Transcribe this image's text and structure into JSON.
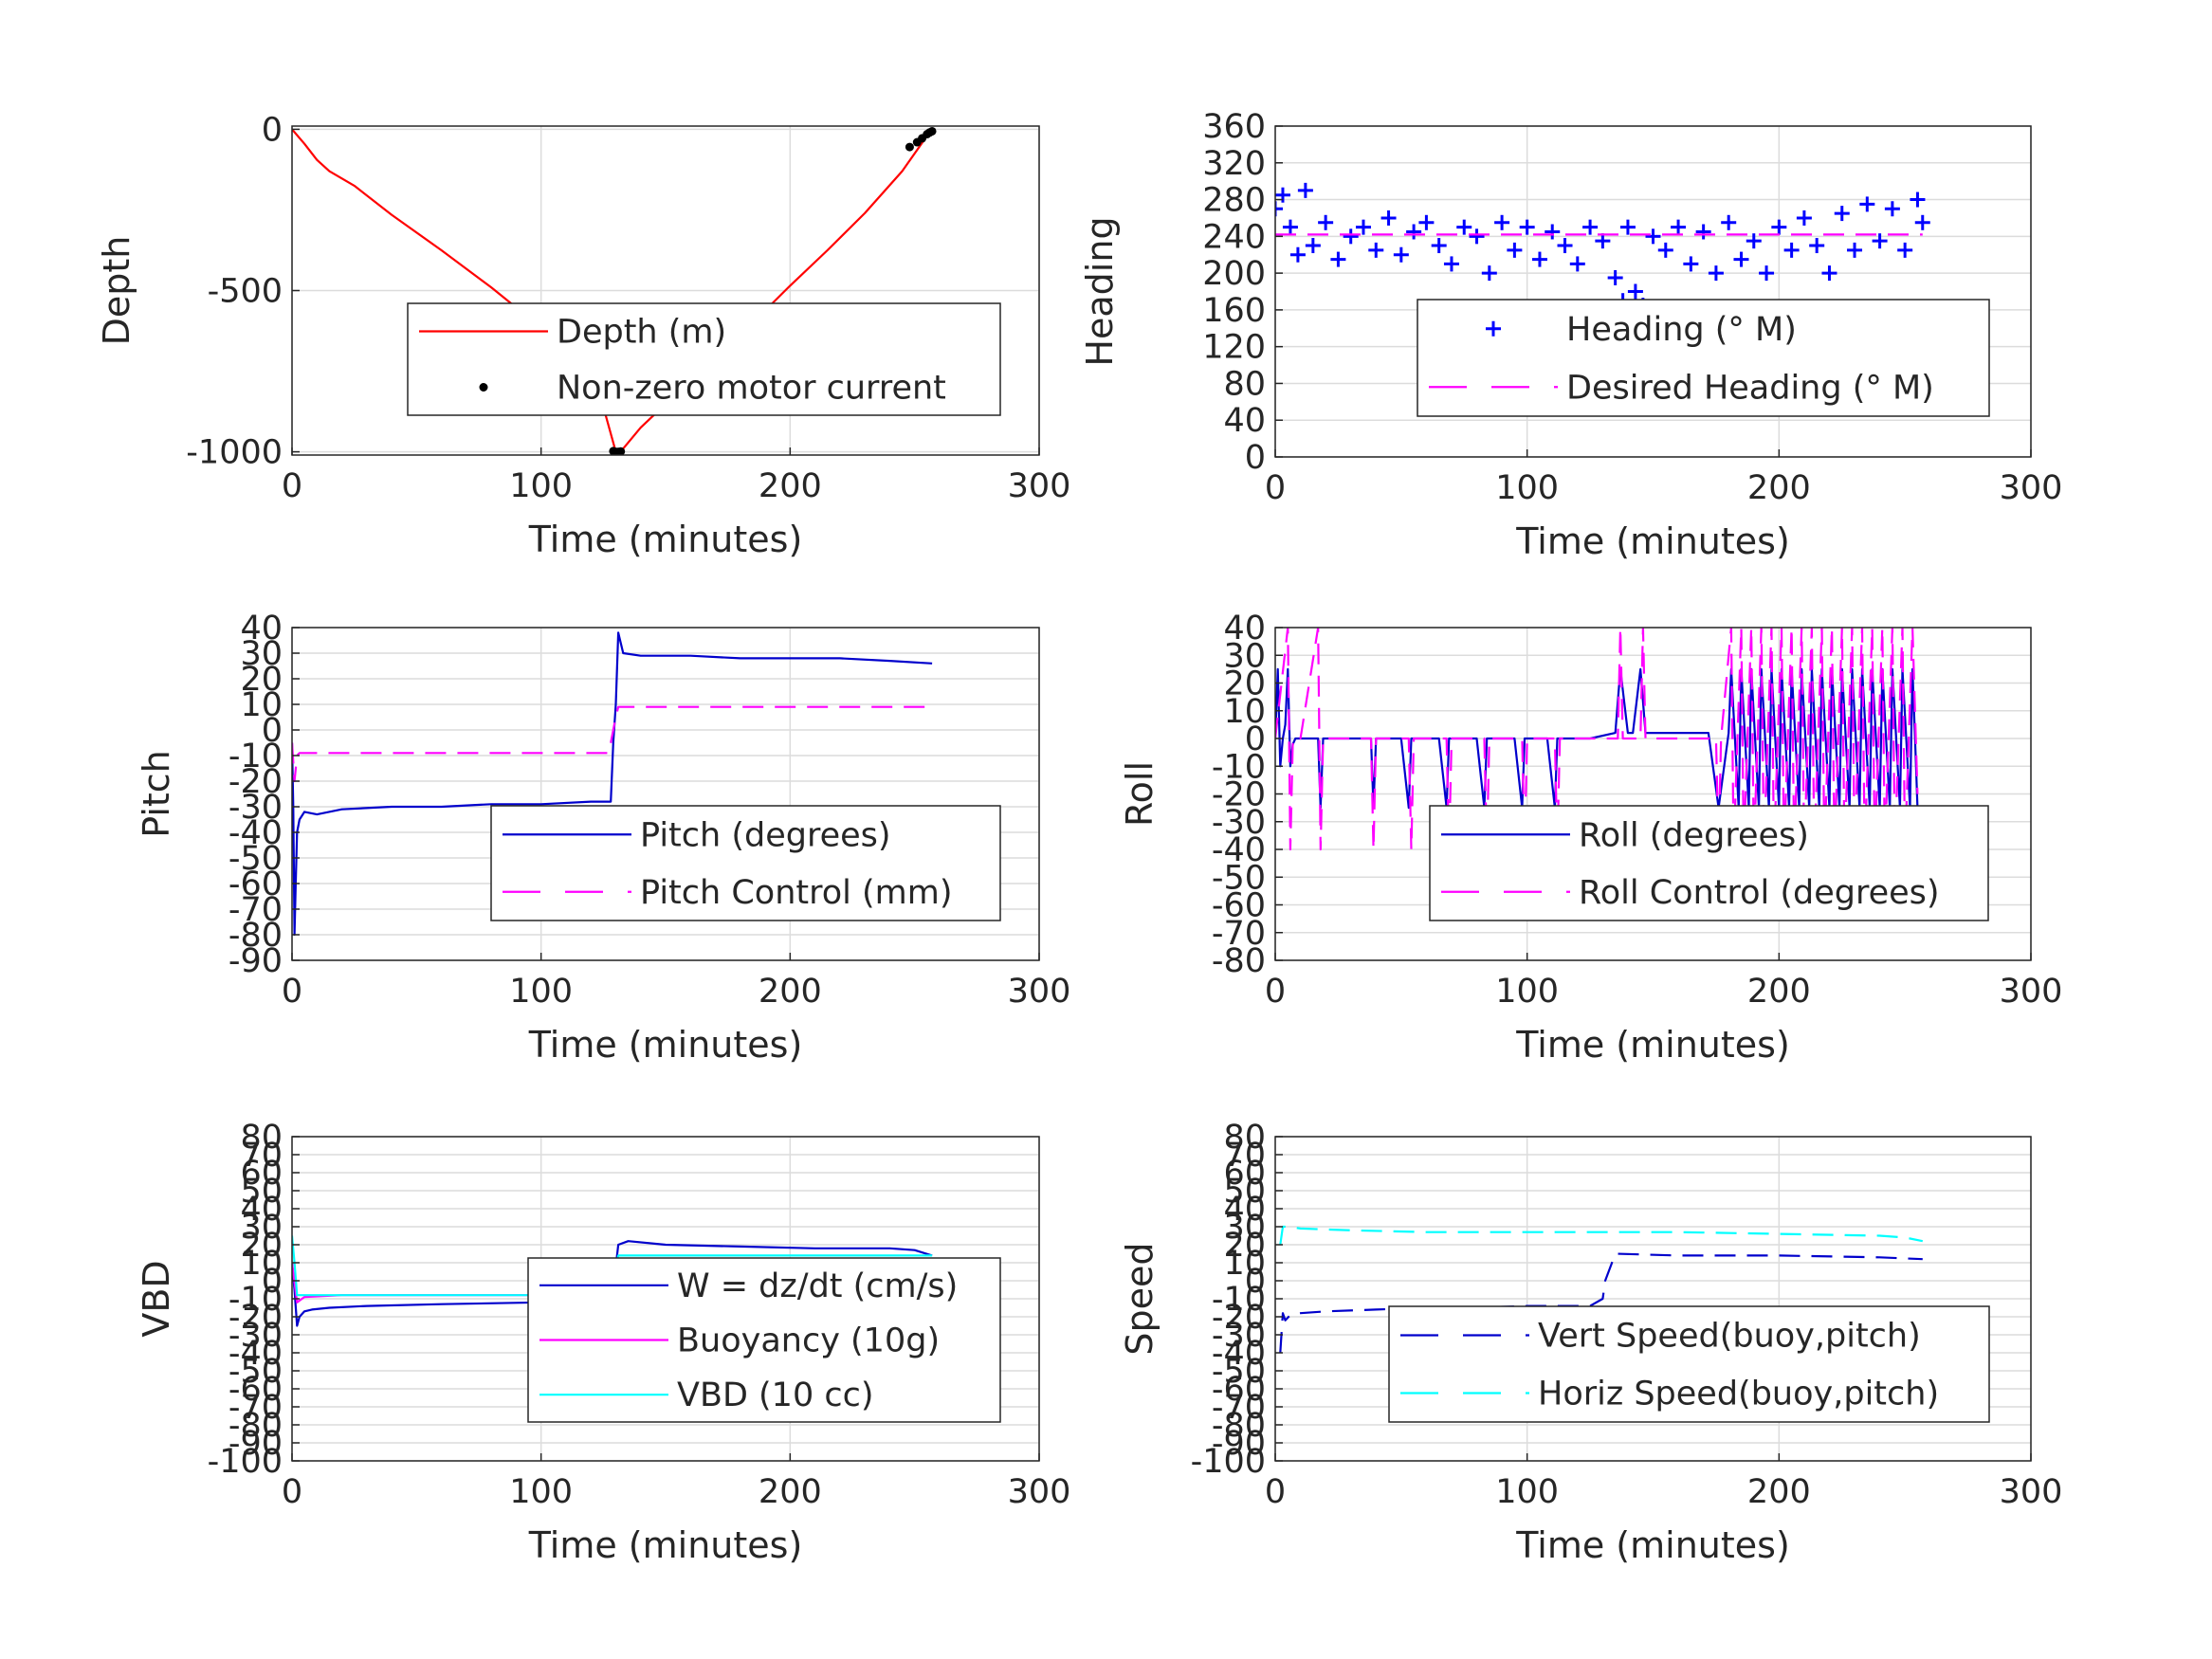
{
  "figure": {
    "background": "#ffffff",
    "grid_color": "#dcdcdc"
  },
  "chart_data": [
    {
      "id": "depth",
      "type": "line",
      "xlabel": "Time (minutes)",
      "ylabel": "Depth",
      "xlim": [
        0,
        300
      ],
      "ylim": [
        -1010,
        10
      ],
      "xticks": [
        0,
        100,
        200,
        300
      ],
      "yticks": [
        0,
        -500,
        -1000
      ],
      "grid": true,
      "legend_position": "center-right",
      "series": [
        {
          "name": "Depth (m)",
          "style": "line",
          "color": "#ff0000",
          "dash": "solid",
          "x": [
            0,
            5,
            10,
            15,
            25,
            40,
            60,
            80,
            100,
            115,
            125,
            130,
            133,
            140,
            155,
            170,
            185,
            200,
            215,
            230,
            245,
            255,
            257
          ],
          "y": [
            0,
            -45,
            -95,
            -130,
            -175,
            -265,
            -375,
            -490,
            -615,
            -730,
            -860,
            -1000,
            -990,
            -925,
            -815,
            -710,
            -600,
            -485,
            -375,
            -260,
            -130,
            -20,
            -5
          ]
        },
        {
          "name": "Non-zero motor current",
          "style": "dots",
          "color": "#000000",
          "x": [
            129,
            130,
            131,
            132,
            248,
            251,
            253,
            255,
            256,
            257
          ],
          "y": [
            -998,
            -1000,
            -1000,
            -999,
            -55,
            -40,
            -28,
            -15,
            -10,
            -6
          ]
        }
      ]
    },
    {
      "id": "heading",
      "type": "scatter",
      "xlabel": "Time (minutes)",
      "ylabel": "Heading",
      "xlim": [
        0,
        300
      ],
      "ylim": [
        0,
        360
      ],
      "xticks": [
        0,
        100,
        200,
        300
      ],
      "yticks": [
        0,
        40,
        80,
        120,
        160,
        200,
        240,
        280,
        320,
        360
      ],
      "grid": true,
      "legend_position": "center-right",
      "series": [
        {
          "name": "Heading (° M)",
          "style": "plus",
          "color": "#0000ff",
          "x": [
            0,
            3,
            6,
            9,
            12,
            15,
            20,
            25,
            30,
            35,
            40,
            45,
            50,
            55,
            60,
            65,
            70,
            75,
            80,
            85,
            90,
            95,
            100,
            105,
            110,
            115,
            120,
            125,
            130,
            135,
            138,
            140,
            143,
            146,
            150,
            155,
            160,
            165,
            170,
            175,
            178,
            180,
            185,
            190,
            195,
            200,
            205,
            210,
            215,
            220,
            225,
            230,
            235,
            240,
            245,
            250,
            255,
            257
          ],
          "y": [
            270,
            285,
            250,
            220,
            290,
            230,
            255,
            215,
            240,
            250,
            225,
            260,
            220,
            245,
            255,
            230,
            210,
            250,
            240,
            200,
            255,
            225,
            250,
            215,
            245,
            230,
            210,
            250,
            235,
            195,
            170,
            250,
            180,
            165,
            240,
            225,
            250,
            210,
            245,
            200,
            160,
            255,
            215,
            235,
            200,
            250,
            225,
            260,
            230,
            200,
            265,
            225,
            275,
            235,
            270,
            225,
            280,
            255
          ]
        },
        {
          "name": "Desired Heading (° M)",
          "style": "line",
          "color": "#ff00ff",
          "dash": "dashed",
          "x": [
            0,
            257
          ],
          "y": [
            242,
            242
          ]
        }
      ]
    },
    {
      "id": "pitch",
      "type": "line",
      "xlabel": "Time (minutes)",
      "ylabel": "Pitch",
      "xlim": [
        0,
        300
      ],
      "ylim": [
        -90,
        40
      ],
      "xticks": [
        0,
        100,
        200,
        300
      ],
      "yticks": [
        40,
        30,
        20,
        10,
        0,
        -10,
        -20,
        -30,
        -40,
        -50,
        -60,
        -70,
        -80,
        -90
      ],
      "grid": true,
      "legend_position": "lower-right",
      "series": [
        {
          "name": "Pitch (degrees)",
          "style": "line",
          "color": "#0000cc",
          "dash": "solid",
          "x": [
            0,
            0.5,
            1,
            1.5,
            2,
            3,
            5,
            10,
            20,
            40,
            60,
            80,
            100,
            120,
            128,
            129,
            130,
            131,
            133,
            140,
            160,
            180,
            200,
            220,
            240,
            257
          ],
          "y": [
            -5,
            -30,
            -80,
            -60,
            -40,
            -35,
            -32,
            -33,
            -31,
            -30,
            -30,
            -29,
            -29,
            -28,
            -28,
            -5,
            10,
            38,
            30,
            29,
            29,
            28,
            28,
            28,
            27,
            26
          ]
        },
        {
          "name": "Pitch Control (mm)",
          "style": "line",
          "color": "#ff00ff",
          "dash": "dashed",
          "x": [
            0,
            1,
            2,
            3,
            10,
            60,
            127,
            128,
            129,
            130,
            131,
            160,
            200,
            257
          ],
          "y": [
            -5,
            -20,
            -10,
            -9,
            -9,
            -9,
            -9,
            -5,
            0,
            5,
            9,
            9,
            9,
            9
          ]
        }
      ]
    },
    {
      "id": "roll",
      "type": "line",
      "xlabel": "Time (minutes)",
      "ylabel": "Roll",
      "xlim": [
        0,
        300
      ],
      "ylim": [
        -80,
        40
      ],
      "xticks": [
        0,
        100,
        200,
        300
      ],
      "yticks": [
        40,
        30,
        20,
        10,
        0,
        -10,
        -20,
        -30,
        -40,
        -50,
        -60,
        -70,
        -80
      ],
      "grid": true,
      "legend_position": "lower-right",
      "series": [
        {
          "name": "Roll (degrees)",
          "style": "line",
          "color": "#0000cc",
          "dash": "solid",
          "x": [
            0,
            1,
            2,
            3,
            4,
            5,
            6,
            7,
            8,
            12,
            17,
            18,
            19,
            20,
            22,
            30,
            38,
            39,
            40,
            41,
            50,
            53,
            54,
            55,
            65,
            68,
            69,
            70,
            80,
            83,
            84,
            85,
            95,
            98,
            99,
            100,
            108,
            111,
            112,
            113,
            120,
            125,
            135,
            137,
            140,
            142,
            145,
            147,
            150,
            155,
            160,
            172,
            176,
            180,
            181,
            184,
            185,
            188,
            189,
            192,
            193,
            196,
            197,
            200,
            201,
            204,
            205,
            208,
            209,
            212,
            213,
            216,
            217,
            220,
            221,
            224,
            225,
            228,
            229,
            232,
            233,
            236,
            237,
            240,
            241,
            244,
            245,
            248,
            249,
            252,
            253,
            254,
            255
          ],
          "y": [
            0,
            25,
            -10,
            0,
            5,
            25,
            -10,
            -2,
            0,
            0,
            0,
            -25,
            0,
            0,
            0,
            0,
            0,
            -25,
            0,
            0,
            0,
            -25,
            0,
            0,
            0,
            -25,
            0,
            0,
            0,
            -25,
            0,
            0,
            0,
            -25,
            0,
            0,
            0,
            -25,
            0,
            0,
            0,
            0,
            2,
            25,
            2,
            2,
            25,
            2,
            2,
            2,
            2,
            2,
            -25,
            2,
            25,
            -25,
            25,
            -25,
            25,
            -25,
            25,
            -25,
            25,
            -25,
            25,
            -25,
            25,
            -25,
            25,
            -25,
            25,
            -25,
            25,
            -25,
            25,
            -25,
            25,
            -25,
            25,
            -25,
            25,
            -25,
            25,
            -25,
            25,
            -25,
            25,
            -25,
            25,
            -25,
            25,
            0,
            -25
          ]
        },
        {
          "name": "Roll Control (degrees)",
          "style": "line",
          "color": "#ff00ff",
          "dash": "dashed",
          "x": [
            0,
            5,
            6,
            7,
            10,
            17,
            18,
            19,
            22,
            38,
            39,
            40,
            53,
            54,
            55,
            68,
            69,
            70,
            83,
            84,
            85,
            98,
            99,
            100,
            111,
            112,
            113,
            130,
            136,
            137,
            138,
            145,
            146,
            147,
            175,
            176,
            177,
            181,
            182,
            185,
            186,
            189,
            190,
            193,
            194,
            197,
            198,
            201,
            202,
            205,
            206,
            209,
            210,
            213,
            214,
            217,
            218,
            221,
            222,
            225,
            226,
            229,
            230,
            233,
            234,
            237,
            238,
            241,
            242,
            245,
            246,
            249,
            250,
            253,
            255
          ],
          "y": [
            0,
            40,
            -40,
            0,
            0,
            40,
            -40,
            0,
            0,
            0,
            -40,
            0,
            0,
            -40,
            0,
            0,
            -40,
            0,
            0,
            -40,
            0,
            0,
            -40,
            0,
            0,
            -40,
            0,
            0,
            0,
            40,
            0,
            0,
            40,
            0,
            0,
            -40,
            0,
            40,
            -40,
            40,
            -40,
            40,
            -40,
            40,
            -40,
            40,
            -40,
            40,
            -40,
            40,
            -40,
            40,
            -40,
            40,
            -40,
            40,
            -40,
            40,
            -40,
            40,
            -40,
            40,
            -40,
            40,
            -40,
            40,
            -40,
            40,
            -40,
            40,
            -40,
            40,
            -40,
            40,
            -20
          ]
        }
      ]
    },
    {
      "id": "vbd",
      "type": "line",
      "xlabel": "Time (minutes)",
      "ylabel": "VBD",
      "xlim": [
        0,
        300
      ],
      "ylim": [
        -100,
        80
      ],
      "xticks": [
        0,
        100,
        200,
        300
      ],
      "yticks": [
        80,
        70,
        60,
        50,
        40,
        30,
        20,
        10,
        0,
        -10,
        -20,
        -30,
        -40,
        -50,
        -60,
        -70,
        -80,
        -90,
        -100
      ],
      "ytick_labels": [
        "80",
        "70",
        "60",
        "50",
        "40",
        "30",
        "20",
        "10",
        "0",
        "-10",
        "-20",
        "-30",
        "-40",
        "-50",
        "-60",
        "-70",
        "-80",
        "-90",
        "-100"
      ],
      "grid": true,
      "legend_position": "center-right",
      "series": [
        {
          "name": "W = dz/dt (cm/s)",
          "style": "line",
          "color": "#0000cc",
          "dash": "solid",
          "x": [
            0,
            1,
            2,
            3,
            5,
            8,
            15,
            30,
            60,
            100,
            128,
            129,
            130,
            131,
            135,
            150,
            180,
            210,
            240,
            250,
            257
          ],
          "y": [
            10,
            -5,
            -25,
            -20,
            -17,
            -16,
            -15,
            -14,
            -13,
            -12,
            -12,
            -5,
            8,
            20,
            22,
            20,
            19,
            18,
            18,
            17,
            14
          ]
        },
        {
          "name": "Buoyancy (10g)",
          "style": "line",
          "color": "#ff00ff",
          "dash": "solid",
          "x": [
            0,
            2,
            5,
            20,
            60,
            128,
            130,
            131,
            150,
            200,
            240,
            257
          ],
          "y": [
            10,
            -12,
            -9,
            -8,
            -8,
            -8,
            5,
            12,
            12,
            12,
            12,
            11
          ]
        },
        {
          "name": "VBD (10 cc)",
          "style": "line",
          "color": "#00ffff",
          "dash": "solid",
          "x": [
            0,
            1,
            2,
            5,
            20,
            60,
            128,
            130,
            131,
            150,
            200,
            240,
            257
          ],
          "y": [
            25,
            10,
            -8,
            -8,
            -8,
            -8,
            -8,
            5,
            14,
            14,
            14,
            14,
            14
          ]
        }
      ]
    },
    {
      "id": "speed",
      "type": "line",
      "xlabel": "Time (minutes)",
      "ylabel": "Speed",
      "xlim": [
        0,
        300
      ],
      "ylim": [
        -100,
        80
      ],
      "xticks": [
        0,
        100,
        200,
        300
      ],
      "yticks": [
        80,
        70,
        60,
        50,
        40,
        30,
        20,
        10,
        0,
        -10,
        -20,
        -30,
        -40,
        -50,
        -60,
        -70,
        -80,
        -90,
        -100
      ],
      "ytick_labels": [
        "80",
        "70",
        "60",
        "50",
        "40",
        "30",
        "20",
        "10",
        "0",
        "-10",
        "-20",
        "-30",
        "-40",
        "-50",
        "-60",
        "-70",
        "-80",
        "-90",
        "-100"
      ],
      "grid": true,
      "legend_position": "lower-right",
      "series": [
        {
          "name": "Vert Speed(buoy,pitch)",
          "style": "line",
          "color": "#0000cc",
          "dash": "dashed",
          "x": [
            2,
            3,
            4,
            6,
            10,
            20,
            40,
            60,
            80,
            100,
            125,
            130,
            131,
            135,
            160,
            200,
            240,
            257
          ],
          "y": [
            -40,
            -18,
            -22,
            -19,
            -18,
            -17,
            -16,
            -15,
            -15,
            -14,
            -14,
            -10,
            0,
            15,
            14,
            14,
            13,
            12
          ]
        },
        {
          "name": "Horiz Speed(buoy,pitch)",
          "style": "line",
          "color": "#00ffff",
          "dash": "dashed",
          "x": [
            2,
            3,
            5,
            10,
            30,
            60,
            100,
            130,
            160,
            200,
            240,
            250,
            257
          ],
          "y": [
            20,
            30,
            30,
            29,
            28,
            27,
            27,
            27,
            27,
            26,
            25,
            24,
            22
          ]
        }
      ]
    }
  ]
}
